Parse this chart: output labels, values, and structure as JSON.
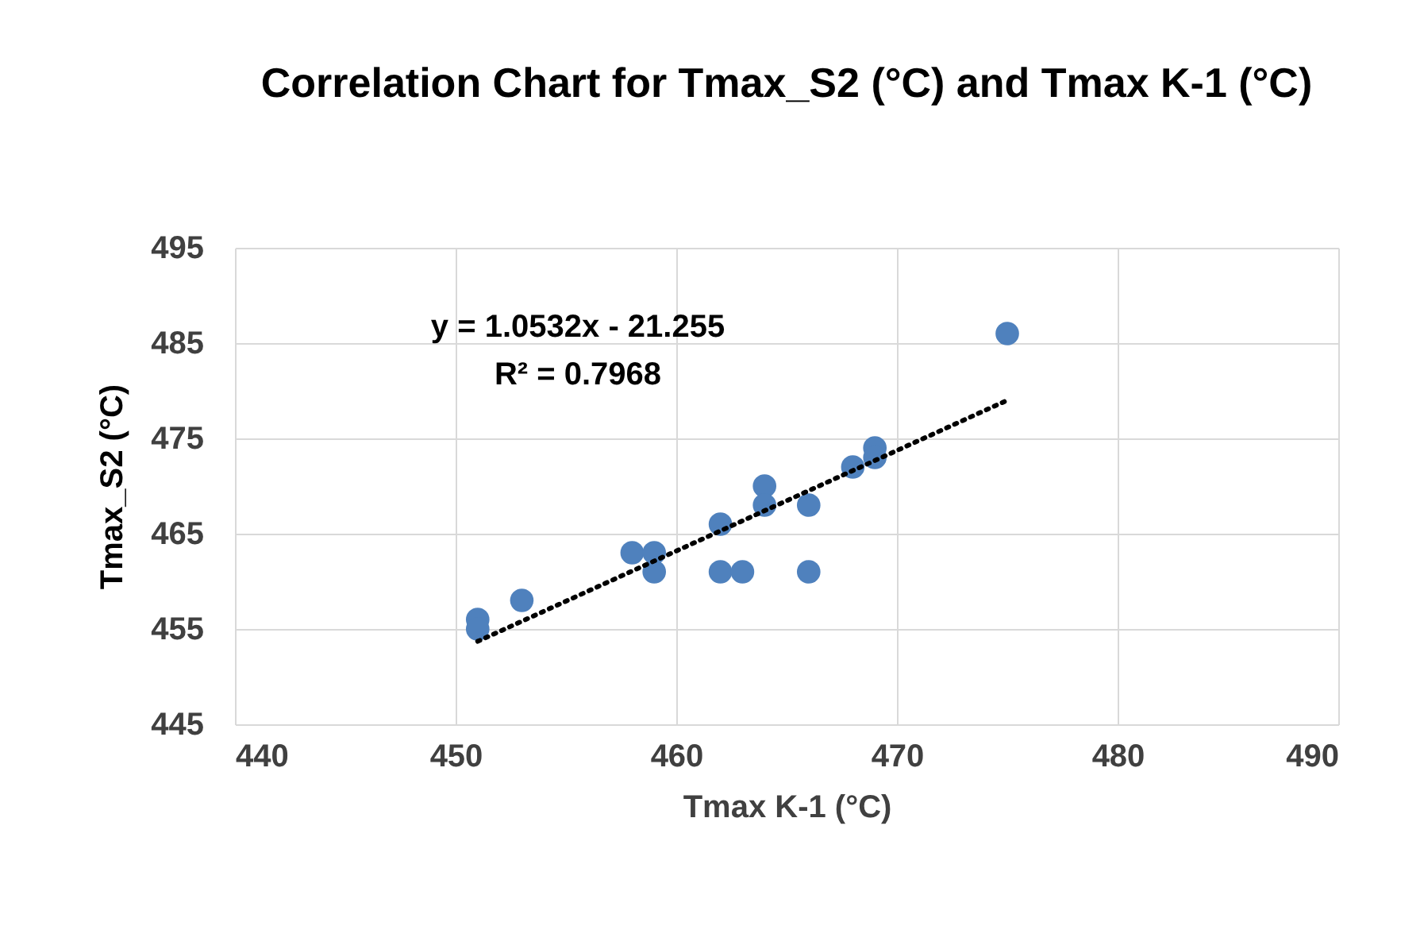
{
  "chart_data": {
    "type": "scatter",
    "title": "Correlation Chart for Tmax_S2 (°C) and Tmax K-1 (°C)",
    "xlabel": "Tmax K-1 (°C)",
    "ylabel": "Tmax_S2 (°C)",
    "annotations": [
      "y = 1.0532x - 21.255",
      "R² = 0.7968"
    ],
    "series": [
      {
        "color": "#4f81bd",
        "marker": "circle",
        "x": [
          451,
          451,
          453,
          458,
          459,
          459,
          462,
          462,
          463,
          464,
          464,
          466,
          466,
          468,
          469,
          469,
          475
        ],
        "values": [
          456,
          455,
          458,
          463,
          463,
          461,
          466,
          461,
          461,
          470,
          468,
          468,
          461,
          472,
          474,
          473,
          486
        ]
      },
      {
        "type": "line",
        "color": "#000000",
        "line_style": "dotted",
        "marker": "none",
        "x": [
          451,
          475
        ],
        "values": [
          453.7,
          479.0
        ]
      }
    ],
    "xlim": [
      440,
      490
    ],
    "xticks": [
      440,
      450,
      460,
      470,
      480,
      490
    ],
    "ylim": [
      445,
      495
    ],
    "yticks": [
      445,
      455,
      465,
      475,
      485,
      495
    ],
    "grid": true
  }
}
